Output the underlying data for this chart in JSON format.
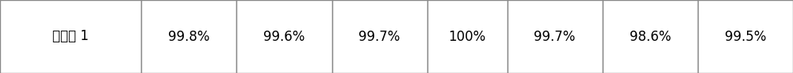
{
  "cells": [
    [
      "对比例 1",
      "99.8%",
      "99.6%",
      "99.7%",
      "100%",
      "99.7%",
      "98.6%",
      "99.5%"
    ]
  ],
  "col_widths": [
    1.75,
    1.18,
    1.18,
    1.18,
    0.99,
    1.18,
    1.18,
    1.18
  ],
  "background_color": "#ffffff",
  "border_color": "#888888",
  "text_color": "#000000",
  "font_size": 12
}
